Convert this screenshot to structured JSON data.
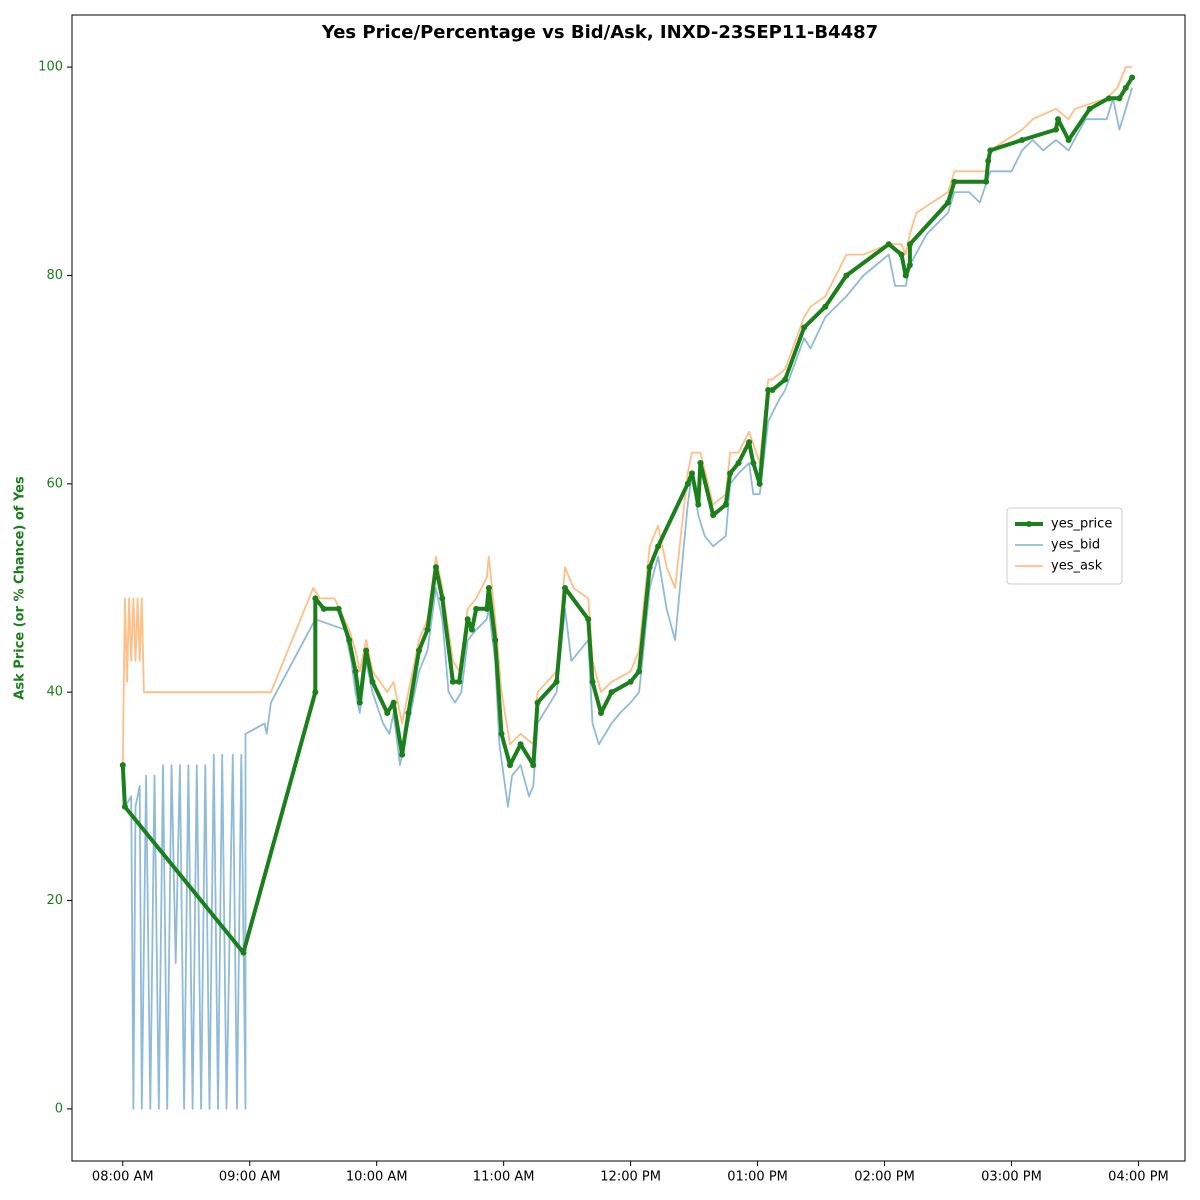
{
  "chart_data": {
    "type": "line",
    "title": "Yes Price/Percentage vs Bid/Ask, INXD-23SEP11-B4487",
    "ylabel": "Ask Price (or % Chance) of Yes",
    "ylabel_color": "#1b7f1b",
    "xlim": [
      "07:36",
      "16:22"
    ],
    "xticks": [
      {
        "value": "08:00",
        "label": "08:00 AM"
      },
      {
        "value": "09:00",
        "label": "09:00 AM"
      },
      {
        "value": "10:00",
        "label": "10:00 AM"
      },
      {
        "value": "11:00",
        "label": "11:00 AM"
      },
      {
        "value": "12:00",
        "label": "12:00 PM"
      },
      {
        "value": "13:00",
        "label": "01:00 PM"
      },
      {
        "value": "14:00",
        "label": "02:00 PM"
      },
      {
        "value": "15:00",
        "label": "03:00 PM"
      },
      {
        "value": "16:00",
        "label": "04:00 PM"
      }
    ],
    "ylim": [
      -5,
      105
    ],
    "yticks": [
      0,
      20,
      40,
      60,
      80,
      100
    ],
    "legend": "center right",
    "series": [
      {
        "name": "yes_price",
        "color": "#1b7f1b",
        "opacity": 1,
        "width": 4,
        "markers": true,
        "x": [
          "08:00",
          "08:01",
          "08:57",
          "09:31",
          "09:31",
          "09:35",
          "09:42",
          "09:47",
          "09:50",
          "09:52",
          "09:55",
          "09:58",
          "10:05",
          "10:08",
          "10:12",
          "10:15",
          "10:20",
          "10:24",
          "10:28",
          "10:31",
          "10:36",
          "10:39",
          "10:43",
          "10:45",
          "10:47",
          "10:52",
          "10:53",
          "10:56",
          "10:59",
          "11:03",
          "11:08",
          "11:14",
          "11:16",
          "11:25",
          "11:29",
          "11:40",
          "11:42",
          "11:46",
          "11:51",
          "12:00",
          "12:04",
          "12:09",
          "12:13",
          "12:27",
          "12:29",
          "12:32",
          "12:33",
          "12:39",
          "12:45",
          "12:47",
          "12:51",
          "12:56",
          "12:58",
          "13:01",
          "13:05",
          "13:07",
          "13:13",
          "13:22",
          "13:32",
          "13:42",
          "14:02",
          "14:08",
          "14:10",
          "14:12",
          "14:12",
          "14:30",
          "14:33",
          "14:48",
          "14:49",
          "14:50",
          "15:05",
          "15:21",
          "15:22",
          "15:27",
          "15:37",
          "15:46",
          "15:51",
          "15:54",
          "15:57"
        ],
        "values": [
          33,
          29,
          15,
          40,
          49,
          48,
          48,
          45,
          42,
          39,
          44,
          41,
          38,
          39,
          34,
          38,
          44,
          46,
          52,
          49,
          41,
          41,
          47,
          46,
          48,
          48,
          50,
          45,
          36,
          33,
          35,
          33,
          39,
          41,
          50,
          47,
          41,
          38,
          40,
          41,
          42,
          52,
          54,
          60,
          61,
          58,
          62,
          57,
          58,
          61,
          62,
          64,
          62,
          60,
          69,
          69,
          70,
          75,
          77,
          80,
          83,
          82,
          80,
          81,
          83,
          87,
          89,
          89,
          91,
          92,
          93,
          94,
          95,
          93,
          96,
          97,
          97,
          98,
          99
        ]
      },
      {
        "name": "yes_bid",
        "color": "#1f77b4",
        "opacity": 0.5,
        "width": 1.8,
        "markers": false,
        "x": [
          "08:01",
          "08:04",
          "08:05",
          "08:06",
          "08:08",
          "08:09",
          "08:11",
          "08:13",
          "08:15",
          "08:17",
          "08:19",
          "08:21",
          "08:23",
          "08:25",
          "08:27",
          "08:29",
          "08:31",
          "08:33",
          "08:35",
          "08:37",
          "08:39",
          "08:41",
          "08:43",
          "08:45",
          "08:47",
          "08:49",
          "08:52",
          "08:54",
          "08:56",
          "08:58",
          "08:58",
          "09:07",
          "09:08",
          "09:10",
          "09:31",
          "09:45",
          "09:48",
          "09:50",
          "09:52",
          "09:55",
          "09:58",
          "10:03",
          "10:06",
          "10:08",
          "10:11",
          "10:14",
          "10:20",
          "10:24",
          "10:28",
          "10:31",
          "10:34",
          "10:37",
          "10:40",
          "10:43",
          "10:47",
          "10:52",
          "10:53",
          "10:56",
          "10:58",
          "11:02",
          "11:04",
          "11:08",
          "11:12",
          "11:14",
          "11:16",
          "11:25",
          "11:29",
          "11:32",
          "11:40",
          "11:42",
          "11:45",
          "11:48",
          "11:51",
          "11:55",
          "12:00",
          "12:04",
          "12:09",
          "12:13",
          "12:17",
          "12:21",
          "12:27",
          "12:29",
          "12:32",
          "12:35",
          "12:39",
          "12:45",
          "12:47",
          "12:51",
          "12:56",
          "12:58",
          "13:01",
          "13:05",
          "13:10",
          "13:13",
          "13:22",
          "13:25",
          "13:32",
          "13:42",
          "13:50",
          "14:02",
          "14:05",
          "14:10",
          "14:12",
          "14:20",
          "14:30",
          "14:33",
          "14:40",
          "14:45",
          "14:50",
          "15:00",
          "15:05",
          "15:10",
          "15:15",
          "15:21",
          "15:27",
          "15:35",
          "15:45",
          "15:48",
          "15:51",
          "15:54",
          "15:57"
        ],
        "values": [
          29,
          30,
          0,
          29,
          31,
          0,
          32,
          0,
          32,
          0,
          33,
          0,
          33,
          14,
          33,
          0,
          33,
          0,
          33,
          0,
          33,
          0,
          34,
          0,
          34,
          0,
          34,
          0,
          34,
          0,
          36,
          37,
          36,
          39,
          47,
          46,
          43,
          40,
          38,
          43,
          40,
          37,
          36,
          38,
          33,
          36,
          42,
          44,
          50,
          47,
          40,
          39,
          40,
          45,
          46,
          47,
          48,
          43,
          35,
          29,
          32,
          33,
          30,
          31,
          37,
          40,
          48,
          43,
          45,
          37,
          35,
          36,
          37,
          38,
          39,
          40,
          50,
          53,
          48,
          45,
          58,
          61,
          57,
          55,
          54,
          55,
          60,
          61,
          62,
          59,
          59,
          66,
          68,
          69,
          74,
          73,
          76,
          78,
          80,
          82,
          79,
          79,
          81,
          84,
          86,
          88,
          88,
          87,
          90,
          90,
          92,
          93,
          92,
          93,
          92,
          95,
          95,
          97,
          94,
          96,
          98
        ]
      },
      {
        "name": "yes_ask",
        "color": "#ff7f0e",
        "opacity": 0.5,
        "width": 1.8,
        "markers": false,
        "x": [
          "08:00",
          "08:01",
          "08:02",
          "08:03",
          "08:04",
          "08:05",
          "08:06",
          "08:07",
          "08:08",
          "08:09",
          "08:10",
          "09:10",
          "09:30",
          "09:33",
          "09:40",
          "09:47",
          "09:50",
          "09:52",
          "09:55",
          "09:58",
          "10:05",
          "10:08",
          "10:12",
          "10:15",
          "10:20",
          "10:24",
          "10:28",
          "10:31",
          "10:36",
          "10:39",
          "10:43",
          "10:47",
          "10:52",
          "10:53",
          "10:56",
          "10:59",
          "11:03",
          "11:08",
          "11:14",
          "11:16",
          "11:25",
          "11:29",
          "11:33",
          "11:40",
          "11:42",
          "11:46",
          "11:51",
          "12:00",
          "12:04",
          "12:09",
          "12:13",
          "12:17",
          "12:21",
          "12:27",
          "12:29",
          "12:33",
          "12:39",
          "12:45",
          "12:47",
          "12:51",
          "12:56",
          "13:01",
          "13:05",
          "13:07",
          "13:13",
          "13:22",
          "13:25",
          "13:32",
          "13:42",
          "13:50",
          "14:02",
          "14:08",
          "14:10",
          "14:12",
          "14:15",
          "14:30",
          "14:33",
          "14:48",
          "14:50",
          "15:05",
          "15:10",
          "15:21",
          "15:27",
          "15:30",
          "15:45",
          "15:50",
          "15:54",
          "15:57"
        ],
        "values": [
          33,
          49,
          41,
          49,
          43,
          49,
          43,
          49,
          43,
          49,
          40,
          40,
          50,
          49,
          49,
          46,
          44,
          42,
          45,
          42,
          40,
          41,
          37,
          40,
          45,
          47,
          53,
          50,
          43,
          42,
          48,
          49,
          51,
          53,
          47,
          40,
          35,
          36,
          35,
          40,
          42,
          52,
          50,
          49,
          43,
          40,
          41,
          42,
          44,
          54,
          56,
          52,
          50,
          61,
          63,
          63,
          58,
          59,
          63,
          63,
          65,
          62,
          70,
          70,
          71,
          76,
          77,
          78,
          82,
          82,
          83,
          83,
          82,
          84,
          86,
          88,
          90,
          90,
          92,
          94,
          95,
          96,
          95,
          96,
          97,
          98,
          100,
          100
        ]
      }
    ]
  }
}
